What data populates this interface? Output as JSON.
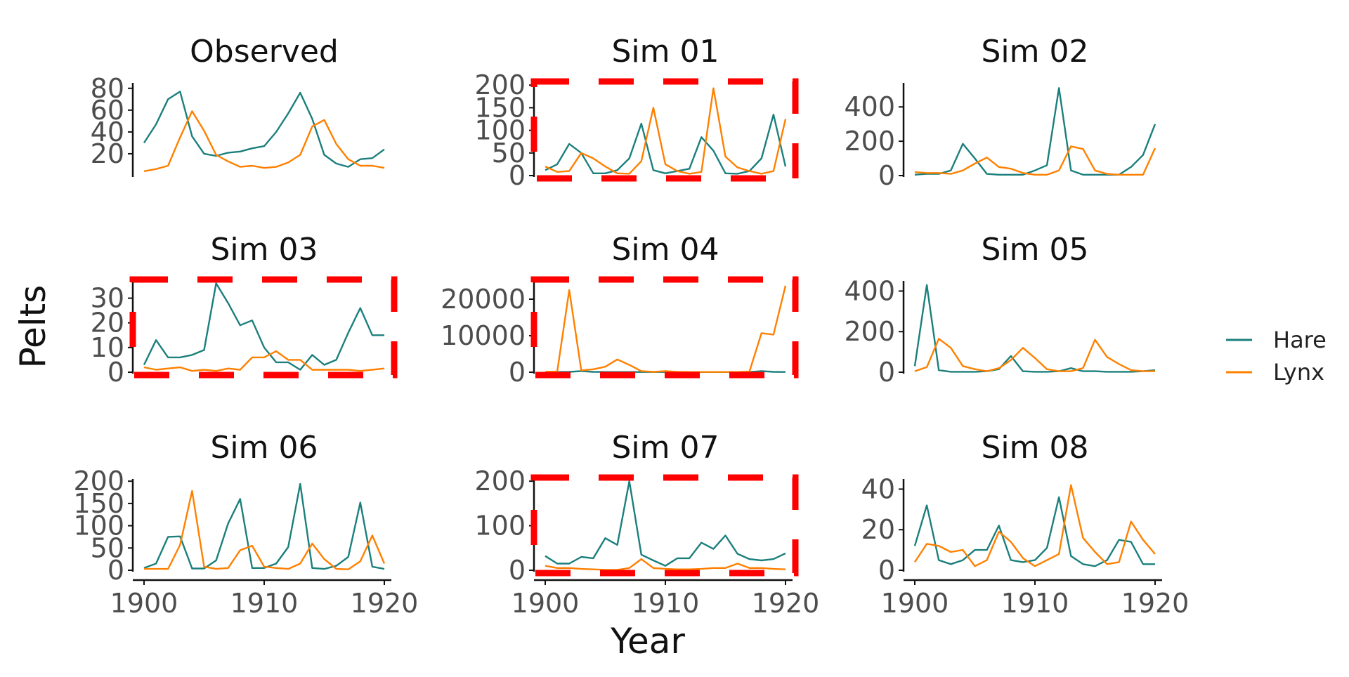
{
  "figure": {
    "xlabel": "Year",
    "ylabel": "Pelts"
  },
  "legend": [
    {
      "name": "Hare",
      "color": "#1b7f7c"
    },
    {
      "name": "Lynx",
      "color": "#ff8000"
    }
  ],
  "highlight_color": "#ff0000",
  "chart_data": [
    {
      "title": "Observed",
      "type": "line",
      "highlighted": false,
      "x": [
        1900,
        1901,
        1902,
        1903,
        1904,
        1905,
        1906,
        1907,
        1908,
        1909,
        1910,
        1911,
        1912,
        1913,
        1914,
        1915,
        1916,
        1917,
        1918,
        1919,
        1920
      ],
      "ylim": [
        0,
        85
      ],
      "yticks": [
        20,
        40,
        60,
        80
      ],
      "xticks": [],
      "series": [
        {
          "name": "Hare",
          "values": [
            30,
            47,
            70,
            77,
            36,
            20,
            18,
            21,
            22,
            25,
            27,
            40,
            57,
            76,
            52,
            19,
            11,
            8,
            15,
            16,
            24
          ]
        },
        {
          "name": "Lynx",
          "values": [
            4,
            6,
            9,
            35,
            59,
            41,
            19,
            13,
            8,
            9,
            7,
            8,
            12,
            19,
            45,
            51,
            29,
            15,
            9,
            9,
            7
          ]
        }
      ]
    },
    {
      "title": "Sim 01",
      "type": "line",
      "highlighted": true,
      "x": [
        1900,
        1901,
        1902,
        1903,
        1904,
        1905,
        1906,
        1907,
        1908,
        1909,
        1910,
        1911,
        1912,
        1913,
        1914,
        1915,
        1916,
        1917,
        1918,
        1919,
        1920
      ],
      "ylim": [
        0,
        205
      ],
      "yticks": [
        0,
        50,
        100,
        150,
        200
      ],
      "xticks": [],
      "series": [
        {
          "name": "Hare",
          "values": [
            12,
            25,
            70,
            50,
            5,
            5,
            12,
            38,
            115,
            12,
            5,
            10,
            15,
            85,
            55,
            5,
            4,
            10,
            38,
            135,
            20
          ]
        },
        {
          "name": "Lynx",
          "values": [
            20,
            8,
            10,
            50,
            38,
            20,
            5,
            4,
            32,
            150,
            25,
            10,
            4,
            8,
            193,
            42,
            18,
            10,
            4,
            10,
            125
          ]
        }
      ]
    },
    {
      "title": "Sim 02",
      "type": "line",
      "highlighted": false,
      "x": [
        1900,
        1901,
        1902,
        1903,
        1904,
        1905,
        1906,
        1907,
        1908,
        1909,
        1910,
        1911,
        1912,
        1913,
        1914,
        1915,
        1916,
        1917,
        1918,
        1919,
        1920
      ],
      "ylim": [
        0,
        540
      ],
      "yticks": [
        0,
        200,
        400
      ],
      "xticks": [],
      "series": [
        {
          "name": "Hare",
          "values": [
            5,
            10,
            10,
            30,
            185,
            100,
            10,
            5,
            5,
            5,
            30,
            60,
            510,
            30,
            5,
            5,
            5,
            5,
            50,
            120,
            300
          ]
        },
        {
          "name": "Lynx",
          "values": [
            20,
            15,
            15,
            10,
            30,
            70,
            105,
            50,
            40,
            15,
            5,
            5,
            30,
            170,
            155,
            30,
            10,
            5,
            5,
            5,
            160
          ]
        }
      ]
    },
    {
      "title": "Sim 03",
      "type": "line",
      "highlighted": true,
      "x": [
        1900,
        1901,
        1902,
        1903,
        1904,
        1905,
        1906,
        1907,
        1908,
        1909,
        1910,
        1911,
        1912,
        1913,
        1914,
        1915,
        1916,
        1917,
        1918,
        1919,
        1920
      ],
      "ylim": [
        0,
        37
      ],
      "yticks": [
        0,
        10,
        20,
        30
      ],
      "xticks": [],
      "series": [
        {
          "name": "Hare",
          "values": [
            3,
            13,
            6,
            6,
            7,
            9,
            36,
            28,
            19,
            21,
            10,
            4,
            4,
            1,
            7,
            3,
            5,
            16,
            26,
            15,
            15
          ]
        },
        {
          "name": "Lynx",
          "values": [
            2,
            1,
            1.5,
            2,
            0.5,
            1,
            0.5,
            1.5,
            1,
            6,
            6,
            8.5,
            5,
            5,
            1,
            1,
            1,
            1,
            0.5,
            1,
            1.5
          ]
        }
      ]
    },
    {
      "title": "Sim 04",
      "type": "line",
      "highlighted": true,
      "x": [
        1900,
        1901,
        1902,
        1903,
        1904,
        1905,
        1906,
        1907,
        1908,
        1909,
        1910,
        1911,
        1912,
        1913,
        1914,
        1915,
        1916,
        1917,
        1918,
        1919,
        1920
      ],
      "ylim": [
        0,
        25000
      ],
      "yticks": [
        0,
        10000,
        20000
      ],
      "xticks": [],
      "series": [
        {
          "name": "Hare",
          "values": [
            50,
            50,
            100,
            300,
            100,
            50,
            50,
            50,
            50,
            50,
            50,
            50,
            50,
            50,
            50,
            50,
            50,
            50,
            300,
            100,
            50
          ]
        },
        {
          "name": "Lynx",
          "values": [
            100,
            200,
            22500,
            500,
            800,
            1500,
            3500,
            2000,
            300,
            100,
            300,
            100,
            50,
            50,
            50,
            50,
            50,
            200,
            10700,
            10300,
            23700
          ]
        }
      ]
    },
    {
      "title": "Sim 05",
      "type": "line",
      "highlighted": false,
      "x": [
        1900,
        1901,
        1902,
        1903,
        1904,
        1905,
        1906,
        1907,
        1908,
        1909,
        1910,
        1911,
        1912,
        1913,
        1914,
        1915,
        1916,
        1917,
        1918,
        1919,
        1920
      ],
      "ylim": [
        0,
        450
      ],
      "yticks": [
        0,
        200,
        400
      ],
      "xticks": [],
      "series": [
        {
          "name": "Hare",
          "values": [
            30,
            430,
            10,
            2,
            2,
            2,
            5,
            15,
            80,
            5,
            2,
            2,
            5,
            20,
            5,
            5,
            2,
            2,
            2,
            5,
            10
          ]
        },
        {
          "name": "Lynx",
          "values": [
            5,
            25,
            165,
            120,
            30,
            15,
            5,
            20,
            60,
            120,
            70,
            15,
            5,
            5,
            20,
            160,
            75,
            40,
            10,
            5,
            5
          ]
        }
      ]
    },
    {
      "title": "Sim 06",
      "type": "line",
      "highlighted": false,
      "x": [
        1900,
        1901,
        1902,
        1903,
        1904,
        1905,
        1906,
        1907,
        1908,
        1909,
        1910,
        1911,
        1912,
        1913,
        1914,
        1915,
        1916,
        1917,
        1918,
        1919,
        1920
      ],
      "ylim": [
        0,
        205
      ],
      "yticks": [
        0,
        50,
        100,
        150,
        200
      ],
      "xticks": [
        1900,
        1910,
        1920
      ],
      "series": [
        {
          "name": "Hare",
          "values": [
            5,
            15,
            75,
            76,
            4,
            4,
            22,
            105,
            160,
            5,
            5,
            15,
            52,
            194,
            5,
            3,
            10,
            30,
            152,
            8,
            3
          ]
        },
        {
          "name": "Lynx",
          "values": [
            3,
            3,
            3,
            57,
            178,
            8,
            3,
            5,
            45,
            55,
            8,
            5,
            3,
            15,
            60,
            25,
            3,
            2,
            20,
            78,
            15
          ]
        }
      ]
    },
    {
      "title": "Sim 07",
      "type": "line",
      "highlighted": true,
      "x": [
        1900,
        1901,
        1902,
        1903,
        1904,
        1905,
        1906,
        1907,
        1908,
        1909,
        1910,
        1911,
        1912,
        1913,
        1914,
        1915,
        1916,
        1917,
        1918,
        1919,
        1920
      ],
      "ylim": [
        0,
        205
      ],
      "yticks": [
        0,
        100,
        200
      ],
      "xticks": [
        1900,
        1910,
        1920
      ],
      "series": [
        {
          "name": "Hare",
          "values": [
            32,
            15,
            15,
            30,
            27,
            72,
            57,
            200,
            35,
            22,
            10,
            27,
            27,
            62,
            48,
            78,
            37,
            25,
            22,
            25,
            38
          ]
        },
        {
          "name": "Lynx",
          "values": [
            10,
            5,
            5,
            3,
            2,
            1,
            1,
            5,
            25,
            5,
            3,
            2,
            2,
            3,
            5,
            5,
            15,
            5,
            5,
            3,
            2
          ]
        }
      ]
    },
    {
      "title": "Sim 08",
      "type": "line",
      "highlighted": false,
      "x": [
        1900,
        1901,
        1902,
        1903,
        1904,
        1905,
        1906,
        1907,
        1908,
        1909,
        1910,
        1911,
        1912,
        1913,
        1914,
        1915,
        1916,
        1917,
        1918,
        1919,
        1920
      ],
      "ylim": [
        0,
        45
      ],
      "yticks": [
        0,
        20,
        40
      ],
      "xticks": [
        1900,
        1910,
        1920
      ],
      "series": [
        {
          "name": "Hare",
          "values": [
            12,
            32,
            5,
            3,
            5,
            10,
            10,
            22,
            5,
            4,
            5,
            11,
            36,
            7,
            3,
            2,
            5,
            15,
            14,
            3,
            3
          ]
        },
        {
          "name": "Lynx",
          "values": [
            4,
            13,
            12,
            9,
            10,
            2,
            5,
            19,
            14,
            6,
            2,
            5,
            8,
            42,
            16,
            9,
            3,
            4,
            24,
            15,
            8
          ]
        }
      ]
    }
  ]
}
